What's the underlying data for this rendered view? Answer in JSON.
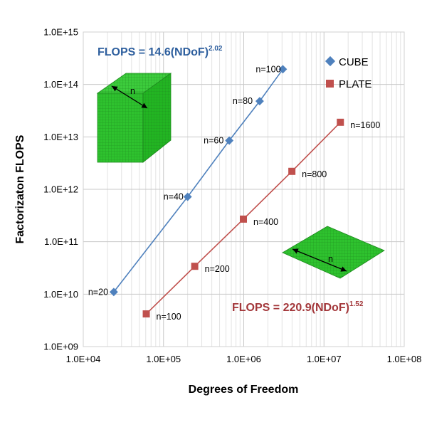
{
  "chart_data": {
    "type": "scatter",
    "x_scale": "log",
    "y_scale": "log",
    "xlabel": "Degrees of Freedom",
    "ylabel": "Factorizaton FLOPS",
    "xlim": [
      10000,
      100000000
    ],
    "ylim": [
      1000000000,
      1000000000000000
    ],
    "x_tick_labels": [
      "1.0E+04",
      "1.0E+05",
      "1.0E+06",
      "1.0E+07",
      "1.0E+08"
    ],
    "y_tick_labels": [
      "1.0E+09",
      "1.0E+10",
      "1.0E+11",
      "1.0E+12",
      "1.0E+13",
      "1.0E+14",
      "1.0E+15"
    ],
    "grid": "vertical minor and major lines",
    "legend_position": "top-right",
    "series": [
      {
        "name": "CUBE",
        "color": "#4f81bd",
        "marker": "diamond",
        "x": [
          24000,
          200000,
          660000,
          1580000,
          3070000
        ],
        "y": [
          11000000000,
          720000000000,
          8500000000000,
          48000000000000,
          195000000000000
        ],
        "labels": [
          "n=20",
          "n=40",
          "n=60",
          "n=80",
          "n=100"
        ],
        "equation": {
          "base": "FLOPS = 14.6(NDoF)",
          "exponent": "2.02"
        }
      },
      {
        "name": "PLATE",
        "color": "#c0504d",
        "marker": "square",
        "x": [
          61000,
          245000,
          990000,
          3980000,
          16000000
        ],
        "y": [
          4200000000,
          34000000000,
          270000000000,
          2200000000000,
          19000000000000
        ],
        "labels": [
          "n=100",
          "n=200",
          "n=400",
          "n=800",
          "n=1600"
        ],
        "equation": {
          "base": "FLOPS = 220.9(NDoF)",
          "exponent": "1.52"
        }
      }
    ],
    "insets": [
      {
        "name": "cube-mesh",
        "label": "n"
      },
      {
        "name": "plate-mesh",
        "label": "n"
      }
    ]
  }
}
